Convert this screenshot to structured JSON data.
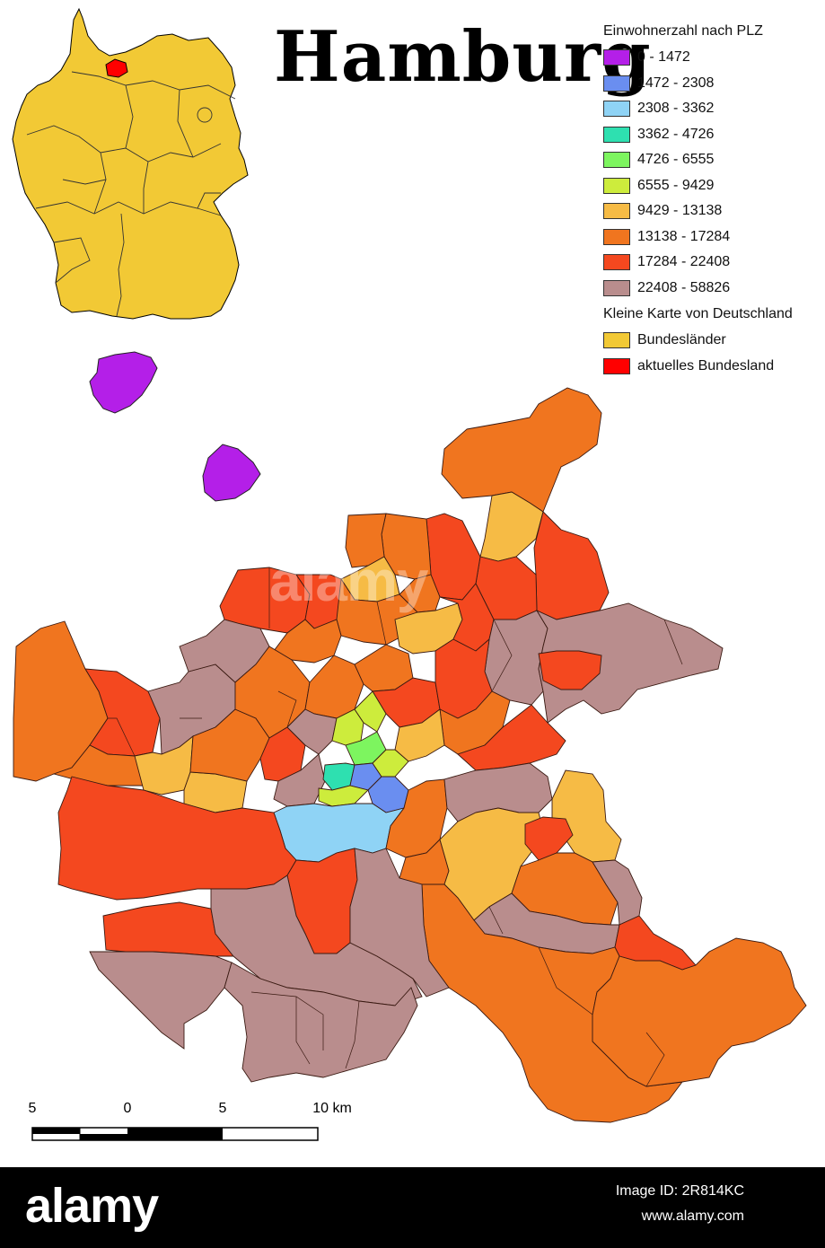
{
  "title": "Hamburg",
  "legend": {
    "population_title": "Einwohnerzahl nach PLZ",
    "classes": [
      {
        "label": "0 - 1472",
        "color": "#b41fe8"
      },
      {
        "label": "1472 - 2308",
        "color": "#6a8ef0"
      },
      {
        "label": "2308 - 3362",
        "color": "#8fd3f5"
      },
      {
        "label": "3362 - 4726",
        "color": "#2ee0b0"
      },
      {
        "label": "4726 - 6555",
        "color": "#7df55f"
      },
      {
        "label": "6555 - 9429",
        "color": "#cdec3c"
      },
      {
        "label": "9429 - 13138",
        "color": "#f6bb45"
      },
      {
        "label": "13138 - 17284",
        "color": "#f0751f"
      },
      {
        "label": "17284 - 22408",
        "color": "#f4481f"
      },
      {
        "label": "22408 - 58826",
        "color": "#b98d8d"
      }
    ],
    "overview_title": "Kleine Karte von Deutschland",
    "overview_items": [
      {
        "label": "Bundesländer",
        "color": "#f2c935"
      },
      {
        "label": "aktuelles Bundesland",
        "color": "#ff0000"
      }
    ]
  },
  "scalebar": {
    "labels": [
      "5",
      "0",
      "5",
      "10 km"
    ]
  },
  "footer": {
    "brand": "alamy",
    "image_id": "Image ID: 2R814KC",
    "site": "www.alamy.com"
  },
  "watermark": "alamy"
}
